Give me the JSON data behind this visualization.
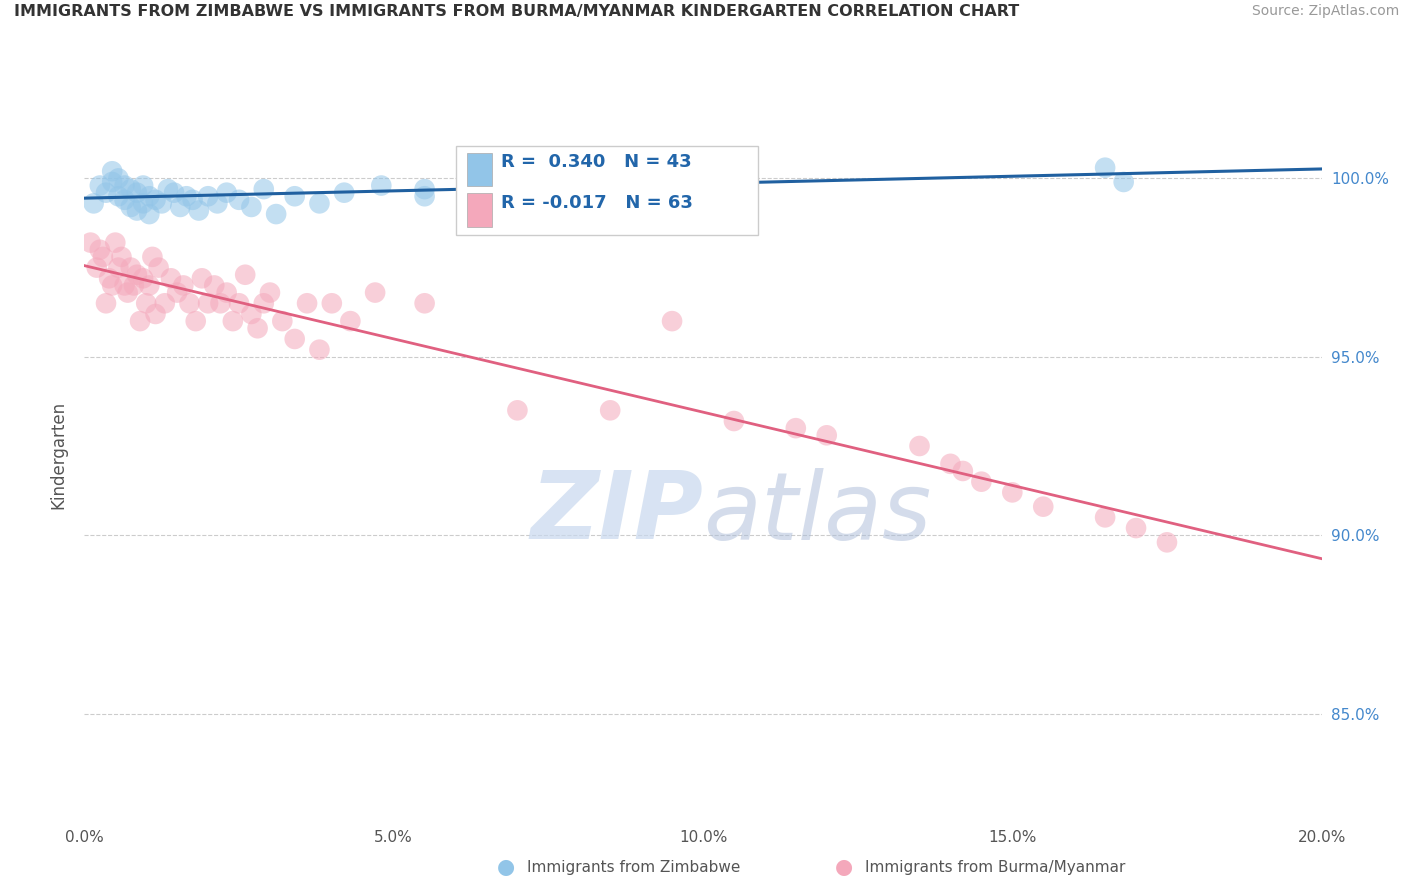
{
  "title": "IMMIGRANTS FROM ZIMBABWE VS IMMIGRANTS FROM BURMA/MYANMAR KINDERGARTEN CORRELATION CHART",
  "source": "Source: ZipAtlas.com",
  "ylabel": "Kindergarten",
  "xmin": 0.0,
  "xmax": 20.0,
  "ymin": 82.0,
  "ymax": 102.5,
  "r_zimbabwe": 0.34,
  "n_zimbabwe": 43,
  "r_burma": -0.017,
  "n_burma": 63,
  "legend_label_zimbabwe": "Immigrants from Zimbabwe",
  "legend_label_burma": "Immigrants from Burma/Myanmar",
  "color_zimbabwe": "#92C5E8",
  "color_burma": "#F4A8BB",
  "color_zimbabwe_line": "#2060A0",
  "color_burma_line": "#E06080",
  "watermark_zip": "ZIP",
  "watermark_atlas": "atlas",
  "blue_x": [
    0.15,
    0.25,
    0.35,
    0.45,
    0.45,
    0.55,
    0.55,
    0.65,
    0.65,
    0.75,
    0.75,
    0.85,
    0.85,
    0.95,
    0.95,
    1.05,
    1.05,
    1.15,
    1.25,
    1.35,
    1.45,
    1.55,
    1.65,
    1.75,
    1.85,
    2.0,
    2.15,
    2.3,
    2.5,
    2.7,
    2.9,
    3.1,
    3.4,
    3.8,
    4.2,
    4.8,
    5.5,
    5.5,
    6.5,
    7.5,
    9.5,
    16.5,
    16.8
  ],
  "blue_y": [
    99.3,
    99.8,
    99.6,
    99.9,
    100.2,
    99.5,
    100.0,
    99.4,
    99.8,
    99.2,
    99.7,
    99.6,
    99.1,
    99.8,
    99.3,
    99.5,
    99.0,
    99.4,
    99.3,
    99.7,
    99.6,
    99.2,
    99.5,
    99.4,
    99.1,
    99.5,
    99.3,
    99.6,
    99.4,
    99.2,
    99.7,
    99.0,
    99.5,
    99.3,
    99.6,
    99.8,
    99.7,
    99.5,
    99.8,
    100.1,
    100.2,
    100.3,
    99.9
  ],
  "pink_x": [
    0.1,
    0.2,
    0.25,
    0.3,
    0.35,
    0.4,
    0.45,
    0.5,
    0.55,
    0.6,
    0.65,
    0.7,
    0.75,
    0.8,
    0.85,
    0.9,
    0.95,
    1.0,
    1.05,
    1.1,
    1.15,
    1.2,
    1.3,
    1.4,
    1.5,
    1.6,
    1.7,
    1.8,
    1.9,
    2.0,
    2.1,
    2.2,
    2.3,
    2.4,
    2.5,
    2.6,
    2.7,
    2.8,
    2.9,
    3.0,
    3.2,
    3.4,
    3.6,
    3.8,
    4.0,
    4.3,
    4.7,
    5.5,
    7.0,
    8.5,
    9.5,
    10.5,
    11.5,
    12.0,
    13.5,
    14.0,
    14.2,
    14.5,
    15.0,
    15.5,
    16.5,
    17.0,
    17.5
  ],
  "pink_y": [
    98.2,
    97.5,
    98.0,
    97.8,
    96.5,
    97.2,
    97.0,
    98.2,
    97.5,
    97.8,
    97.0,
    96.8,
    97.5,
    97.0,
    97.3,
    96.0,
    97.2,
    96.5,
    97.0,
    97.8,
    96.2,
    97.5,
    96.5,
    97.2,
    96.8,
    97.0,
    96.5,
    96.0,
    97.2,
    96.5,
    97.0,
    96.5,
    96.8,
    96.0,
    96.5,
    97.3,
    96.2,
    95.8,
    96.5,
    96.8,
    96.0,
    95.5,
    96.5,
    95.2,
    96.5,
    96.0,
    96.8,
    96.5,
    93.5,
    93.5,
    96.0,
    93.2,
    93.0,
    92.8,
    92.5,
    92.0,
    91.8,
    91.5,
    91.2,
    90.8,
    90.5,
    90.2,
    89.8
  ]
}
